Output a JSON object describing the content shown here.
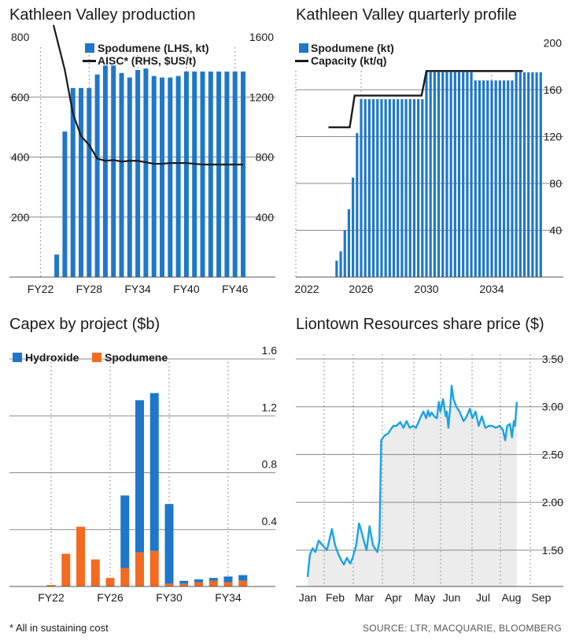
{
  "footnote": "* All in sustaining cost",
  "source": "SOURCE: LTR, MACQUARIE, BLOOMBERG",
  "colors": {
    "blue": "#1f77c9",
    "orange": "#f26b21",
    "line": "#1a1a1a",
    "share": "#1aa3e0",
    "grid": "#8a8a8a",
    "shade": "#ececec"
  },
  "chart_data": [
    {
      "id": "production",
      "type": "bar",
      "title": "Kathleen Valley production",
      "x_ticks": [
        "FY22",
        "FY28",
        "FY34",
        "FY40",
        "FY46"
      ],
      "y_left": {
        "ticks": [
          200,
          400,
          600,
          800
        ],
        "range": [
          0,
          800
        ]
      },
      "y_right": {
        "ticks": [
          400,
          800,
          1200,
          1600
        ],
        "range": [
          0,
          1600
        ]
      },
      "legend": [
        {
          "label": "Spodumene (LHS, kt)",
          "kind": "bar"
        },
        {
          "label": "AISC* (RHS, $US/t)",
          "kind": "line"
        }
      ],
      "x": [
        "FY24",
        "FY25",
        "FY26",
        "FY27",
        "FY28",
        "FY29",
        "FY30",
        "FY31",
        "FY32",
        "FY33",
        "FY34",
        "FY35",
        "FY36",
        "FY37",
        "FY38",
        "FY39",
        "FY40",
        "FY41",
        "FY42",
        "FY43",
        "FY44",
        "FY45",
        "FY46",
        "FY47"
      ],
      "series": [
        {
          "name": "Spodumene (LHS, kt)",
          "kind": "bar",
          "values": [
            75,
            485,
            630,
            630,
            630,
            675,
            705,
            705,
            680,
            665,
            690,
            695,
            670,
            665,
            665,
            670,
            685,
            685,
            685,
            685,
            685,
            685,
            685,
            685
          ]
        },
        {
          "name": "AISC* (RHS, $US/t)",
          "kind": "line",
          "values": [
            null,
            1380,
            1090,
            940,
            880,
            790,
            775,
            780,
            770,
            775,
            775,
            765,
            755,
            755,
            760,
            760,
            760,
            755,
            750,
            750,
            750,
            750,
            750,
            750
          ]
        }
      ]
    },
    {
      "id": "quarterly",
      "type": "bar",
      "title": "Kathleen Valley quarterly profile",
      "x_ticks": [
        "2022",
        "2026",
        "2030",
        "2034"
      ],
      "y_right": {
        "ticks": [
          40,
          80,
          120,
          160,
          200
        ],
        "range": [
          0,
          195
        ]
      },
      "legend": [
        {
          "label": "Spodumene (kt)",
          "kind": "bar"
        },
        {
          "label": "Capacity (kt/q)",
          "kind": "line"
        }
      ],
      "x_start": 2024.5,
      "x_step": 0.25,
      "series": [
        {
          "name": "Spodumene (kt)",
          "kind": "bar",
          "values": [
            14,
            22,
            40,
            58,
            85,
            123,
            152,
            152,
            152,
            152,
            152,
            152,
            152,
            152,
            152,
            152,
            152,
            152,
            152,
            152,
            152,
            152,
            175,
            175,
            175,
            175,
            175,
            175,
            175,
            175,
            175,
            175,
            175,
            175,
            168,
            168,
            168,
            168,
            168,
            168,
            168,
            168,
            168,
            168,
            175,
            175,
            175,
            175,
            175,
            175,
            175
          ]
        },
        {
          "name": "Capacity (kt/q)",
          "kind": "line",
          "points": [
            [
              2024.0,
              128
            ],
            [
              2025.3,
              128
            ],
            [
              2025.6,
              155
            ],
            [
              2029.7,
              155
            ],
            [
              2030.0,
              176
            ],
            [
              2035.9,
              176
            ]
          ]
        }
      ]
    },
    {
      "id": "capex",
      "type": "bar",
      "title": "Capex by project ($b)",
      "x_ticks": [
        "FY22",
        "FY26",
        "FY30",
        "FY34"
      ],
      "y_right": {
        "ticks": [
          0.4,
          0.8,
          1.2,
          1.6
        ],
        "range": [
          0,
          1.6
        ]
      },
      "legend": [
        {
          "label": "Hydroxide",
          "kind": "bar"
        },
        {
          "label": "Spodumene",
          "kind": "bar"
        }
      ],
      "x": [
        "FY20",
        "FY21",
        "FY22",
        "FY23",
        "FY24",
        "FY25",
        "FY26",
        "FY27",
        "FY28",
        "FY29",
        "FY30",
        "FY31",
        "FY32",
        "FY33",
        "FY34",
        "FY35"
      ],
      "series": [
        {
          "name": "Spodumene",
          "values": [
            0.0,
            0.0,
            0.01,
            0.23,
            0.42,
            0.19,
            0.06,
            0.13,
            0.24,
            0.25,
            0.02,
            0.02,
            0.03,
            0.04,
            0.03,
            0.04
          ]
        },
        {
          "name": "Hydroxide",
          "values": [
            0.0,
            0.0,
            0.0,
            0.0,
            0.0,
            0.0,
            0.0,
            0.51,
            1.07,
            1.11,
            0.56,
            0.02,
            0.02,
            0.02,
            0.04,
            0.04
          ]
        }
      ]
    },
    {
      "id": "share",
      "type": "line",
      "title": "Liontown Resources share price ($)",
      "x_ticks": [
        "Jan",
        "Feb",
        "Mar",
        "Apr",
        "May",
        "Jun",
        "Jul",
        "Aug",
        "Sep"
      ],
      "y_right": {
        "ticks": [
          1.5,
          2.0,
          2.5,
          3.0,
          3.5
        ],
        "range": [
          1.12,
          3.5
        ]
      },
      "series": [
        {
          "name": "Share price",
          "points": [
            [
              0.0,
              1.22
            ],
            [
              0.08,
              1.45
            ],
            [
              0.18,
              1.52
            ],
            [
              0.28,
              1.48
            ],
            [
              0.4,
              1.6
            ],
            [
              0.55,
              1.55
            ],
            [
              0.7,
              1.5
            ],
            [
              0.8,
              1.62
            ],
            [
              0.88,
              1.72
            ],
            [
              1.0,
              1.55
            ],
            [
              1.12,
              1.45
            ],
            [
              1.2,
              1.4
            ],
            [
              1.3,
              1.35
            ],
            [
              1.4,
              1.42
            ],
            [
              1.52,
              1.36
            ],
            [
              1.6,
              1.42
            ],
            [
              1.72,
              1.55
            ],
            [
              1.82,
              1.78
            ],
            [
              1.9,
              1.7
            ],
            [
              2.0,
              1.58
            ],
            [
              2.08,
              1.5
            ],
            [
              2.18,
              1.75
            ],
            [
              2.3,
              1.55
            ],
            [
              2.45,
              1.48
            ],
            [
              2.52,
              1.6
            ],
            [
              2.58,
              2.65
            ],
            [
              2.7,
              2.7
            ],
            [
              2.82,
              2.72
            ],
            [
              2.9,
              2.76
            ],
            [
              3.0,
              2.8
            ],
            [
              3.1,
              2.8
            ],
            [
              3.22,
              2.84
            ],
            [
              3.32,
              2.78
            ],
            [
              3.42,
              2.85
            ],
            [
              3.52,
              2.78
            ],
            [
              3.62,
              2.8
            ],
            [
              3.72,
              2.78
            ],
            [
              3.85,
              2.88
            ],
            [
              3.95,
              2.95
            ],
            [
              4.05,
              2.88
            ],
            [
              4.12,
              2.96
            ],
            [
              4.18,
              2.9
            ],
            [
              4.25,
              2.94
            ],
            [
              4.35,
              2.9
            ],
            [
              4.45,
              2.88
            ],
            [
              4.52,
              3.05
            ],
            [
              4.58,
              2.95
            ],
            [
              4.68,
              3.08
            ],
            [
              4.78,
              2.9
            ],
            [
              4.82,
              2.95
            ],
            [
              4.88,
              2.78
            ],
            [
              4.95,
              3.0
            ],
            [
              5.0,
              3.22
            ],
            [
              5.06,
              3.08
            ],
            [
              5.15,
              3.0
            ],
            [
              5.25,
              2.95
            ],
            [
              5.38,
              2.85
            ],
            [
              5.48,
              2.9
            ],
            [
              5.58,
              2.98
            ],
            [
              5.66,
              2.88
            ],
            [
              5.76,
              2.95
            ],
            [
              5.86,
              2.8
            ],
            [
              5.96,
              2.9
            ],
            [
              6.08,
              2.78
            ],
            [
              6.2,
              2.8
            ],
            [
              6.32,
              2.8
            ],
            [
              6.45,
              2.78
            ],
            [
              6.58,
              2.8
            ],
            [
              6.7,
              2.76
            ],
            [
              6.78,
              2.65
            ],
            [
              6.85,
              2.8
            ],
            [
              6.95,
              2.82
            ],
            [
              7.02,
              2.68
            ],
            [
              7.08,
              2.85
            ],
            [
              7.12,
              2.8
            ],
            [
              7.18,
              3.05
            ]
          ]
        }
      ]
    }
  ]
}
